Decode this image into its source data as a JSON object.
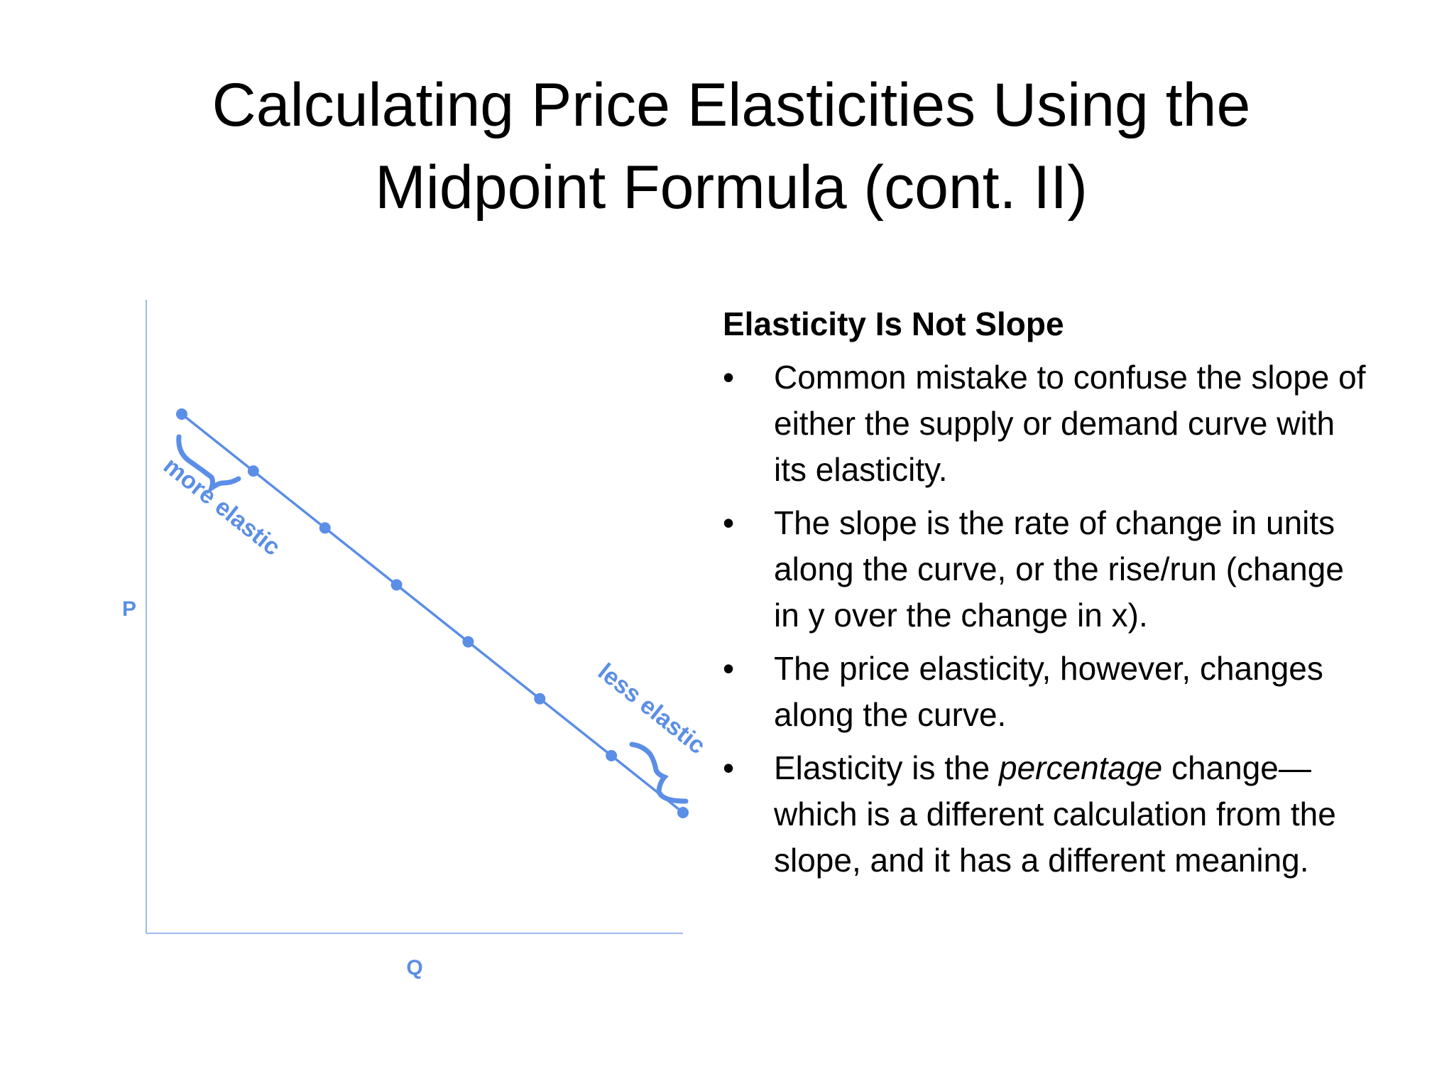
{
  "slide": {
    "title_line1": "Calculating Price Elasticities Using the",
    "title_line2": "Midpoint Formula (cont. II)"
  },
  "figure": {
    "y_label": "P",
    "x_label": "Q",
    "annotation_top": "more elastic",
    "annotation_bottom": "less elastic",
    "accent_color": "#5b8ee6",
    "axis_color": "#9dbbf0",
    "point_count": 8
  },
  "content": {
    "heading": "Elasticity Is Not Slope",
    "bullet_glyph": "•",
    "bullets": [
      {
        "text": "Common mistake to confuse the slope of either the supply or demand curve with its elasticity."
      },
      {
        "text": "The slope is the rate of change in units along the curve, or the rise/run (change in y over the change in x)."
      },
      {
        "text": "The price elasticity, however, changes along the curve."
      },
      {
        "pre": "Elasticity is the ",
        "emph": "percentage",
        "post": " change—which is a different calculation from the slope, and it has a different meaning."
      }
    ]
  }
}
